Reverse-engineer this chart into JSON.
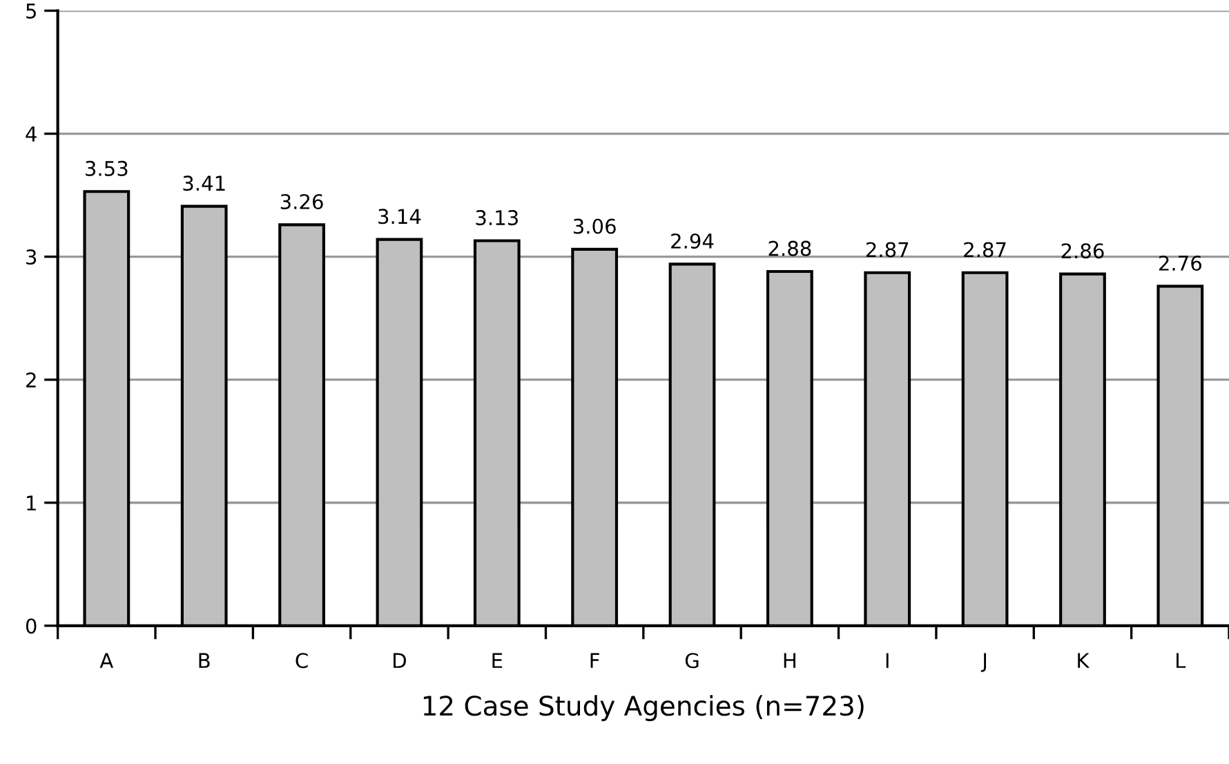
{
  "chart_data": {
    "type": "bar",
    "xlabel": "12 Case Study Agencies (n=723)",
    "categories": [
      "A",
      "B",
      "C",
      "D",
      "E",
      "F",
      "G",
      "H",
      "I",
      "J",
      "K",
      "L"
    ],
    "values": [
      3.53,
      3.41,
      3.26,
      3.14,
      3.13,
      3.06,
      2.94,
      2.88,
      2.87,
      2.87,
      2.86,
      2.76
    ],
    "color": "#bfbfbf",
    "ylim": [
      0,
      5
    ],
    "yticks": [
      0,
      1,
      2,
      3,
      4,
      5
    ],
    "grid": "y",
    "data_labels": true
  }
}
